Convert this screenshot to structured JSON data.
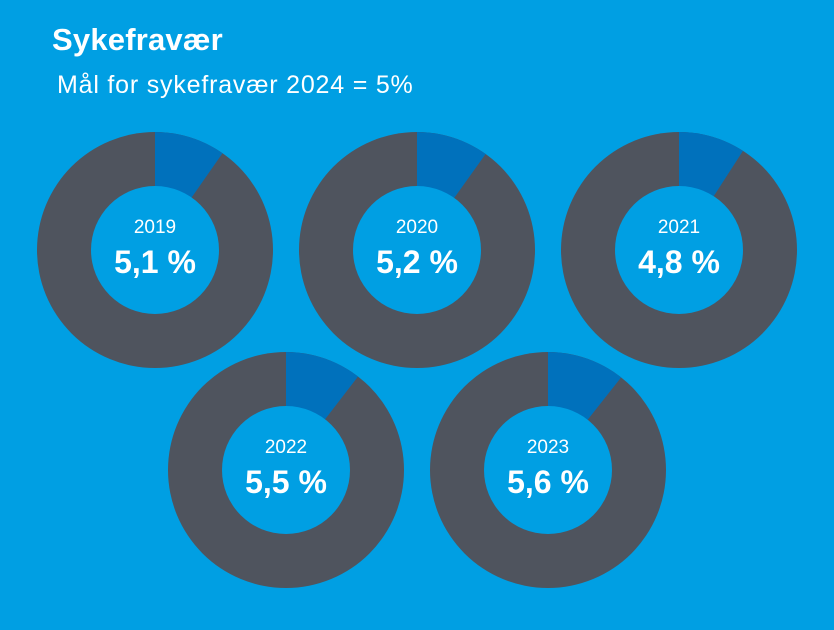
{
  "title": "Sykefravær",
  "subtitle": "Mål for sykefravær 2024 = 5%",
  "colors": {
    "background": "#009fe3",
    "ring": "#4f545e",
    "slice": "#0071bc",
    "center": "#009fe3",
    "text": "#ffffff"
  },
  "chart_data": {
    "type": "pie",
    "title": "Sykefravær",
    "subtitle": "Mål for sykefravær 2024 = 5%",
    "unit": "%",
    "years": [
      "2019",
      "2020",
      "2021",
      "2022",
      "2023"
    ],
    "values": [
      5.1,
      5.2,
      4.8,
      5.5,
      5.6
    ],
    "value_labels": [
      "5,1 %",
      "5,2 %",
      "4,8 %",
      "5,5 %",
      "5,6 %"
    ]
  }
}
